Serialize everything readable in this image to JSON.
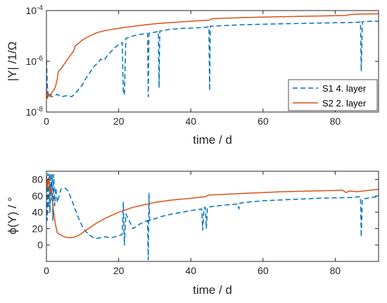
{
  "chart_data": [
    {
      "type": "line",
      "xlabel": "time / d",
      "ylabel": "|Y| /1/Ω",
      "xscale": "linear",
      "yscale": "log",
      "xlim": [
        0,
        92
      ],
      "ylim": [
        1e-08,
        0.0001
      ],
      "xticks": [
        0,
        20,
        40,
        60,
        80
      ],
      "yticks": [
        {
          "value": 1e-08,
          "base": "10",
          "exp": "-8"
        },
        {
          "value": 1e-06,
          "base": "10",
          "exp": "-6"
        },
        {
          "value": 0.0001,
          "base": "10",
          "exp": "-4"
        }
      ],
      "legend": {
        "position": "bottom-right",
        "entries": [
          "S1 4. layer",
          "S2 2. layer"
        ]
      },
      "grid": false,
      "series": [
        {
          "name": "S1 4. layer",
          "color": "#0072BD",
          "dash": "dashed",
          "points": [
            [
              0,
              1.1e-06
            ],
            [
              0.3,
              8e-08
            ],
            [
              0.6,
              4e-08
            ],
            [
              1,
              5e-08
            ],
            [
              1.5,
              4e-08
            ],
            [
              2.5,
              4.5e-08
            ],
            [
              3,
              5e-08
            ],
            [
              4,
              4e-08
            ],
            [
              6,
              4.5e-08
            ],
            [
              7,
              4e-08
            ],
            [
              8,
              5.5e-08
            ],
            [
              9,
              8e-08
            ],
            [
              10,
              1.2e-07
            ],
            [
              11,
              2.2e-07
            ],
            [
              12,
              3.5e-07
            ],
            [
              13,
              6e-07
            ],
            [
              14,
              8e-07
            ],
            [
              15,
              1.2e-06
            ],
            [
              16,
              1.1e-06
            ],
            [
              17,
              1.8e-06
            ],
            [
              18,
              2.5e-06
            ],
            [
              19,
              3.5e-06
            ],
            [
              20,
              4.5e-06
            ],
            [
              21,
              5.5e-06
            ],
            [
              21.3,
              5e-08
            ],
            [
              21.6,
              5e-08
            ],
            [
              22,
              8e-06
            ],
            [
              24,
              1e-05
            ],
            [
              26,
              1.15e-05
            ],
            [
              28,
              1.25e-05
            ],
            [
              28.2,
              4e-08
            ],
            [
              28.4,
              1.3e-05
            ],
            [
              30,
              1.4e-05
            ],
            [
              31,
              1.5e-05
            ],
            [
              31.2,
              9e-08
            ],
            [
              31.4,
              1.55e-05
            ],
            [
              34,
              1.8e-05
            ],
            [
              38,
              2e-05
            ],
            [
              42,
              2.1e-05
            ],
            [
              44,
              2.2e-05
            ],
            [
              45,
              2.3e-05
            ],
            [
              45.2,
              7e-08
            ],
            [
              45.4,
              2.4e-05
            ],
            [
              50,
              2.6e-05
            ],
            [
              55,
              2.8e-05
            ],
            [
              60,
              2.9e-05
            ],
            [
              65,
              3e-05
            ],
            [
              70,
              3.1e-05
            ],
            [
              75,
              3.2e-05
            ],
            [
              80,
              3.3e-05
            ],
            [
              85,
              3.4e-05
            ],
            [
              87,
              3.5e-05
            ],
            [
              87.2,
              4e-07
            ],
            [
              87.5,
              3.6e-05
            ],
            [
              90,
              3.8e-05
            ],
            [
              92,
              3.8e-05
            ]
          ]
        },
        {
          "name": "S2 2. layer",
          "color": "#D95319",
          "dash": "solid",
          "points": [
            [
              0,
              9e-08
            ],
            [
              0.3,
              3.5e-08
            ],
            [
              0.7,
              5e-08
            ],
            [
              1,
              4e-08
            ],
            [
              1.5,
              6e-08
            ],
            [
              2,
              7e-08
            ],
            [
              2.5,
              1e-07
            ],
            [
              3,
              2e-07
            ],
            [
              3.3,
              4e-07
            ],
            [
              4,
              5e-07
            ],
            [
              5,
              8e-07
            ],
            [
              6,
              1.3e-06
            ],
            [
              7,
              2e-06
            ],
            [
              7.5,
              2.5e-06
            ],
            [
              8,
              4e-06
            ],
            [
              10,
              7e-06
            ],
            [
              12,
              1e-05
            ],
            [
              14,
              1.35e-05
            ],
            [
              16,
              1.6e-05
            ],
            [
              18,
              1.8e-05
            ],
            [
              20,
              2e-05
            ],
            [
              22,
              2.2e-05
            ],
            [
              25,
              2.5e-05
            ],
            [
              28,
              2.8e-05
            ],
            [
              31,
              3.1e-05
            ],
            [
              35,
              3.4e-05
            ],
            [
              40,
              3.8e-05
            ],
            [
              44,
              4.1e-05
            ],
            [
              45,
              4.2e-05
            ],
            [
              46,
              4.8e-05
            ],
            [
              50,
              5e-05
            ],
            [
              55,
              5.3e-05
            ],
            [
              60,
              5.5e-05
            ],
            [
              65,
              5.7e-05
            ],
            [
              70,
              5.9e-05
            ],
            [
              75,
              6.1e-05
            ],
            [
              80,
              6.3e-05
            ],
            [
              83,
              6.4e-05
            ],
            [
              84,
              7e-05
            ],
            [
              86,
              7.2e-05
            ],
            [
              88,
              7.3e-05
            ],
            [
              90,
              7.4e-05
            ],
            [
              92,
              7.5e-05
            ]
          ]
        }
      ]
    },
    {
      "type": "line",
      "xlabel": "time / d",
      "ylabel": "ϕ(Y) / °",
      "xscale": "linear",
      "yscale": "linear",
      "xlim": [
        0,
        92
      ],
      "ylim": [
        -20,
        90
      ],
      "xticks": [
        0,
        20,
        40,
        60,
        80
      ],
      "yticks": [
        0,
        20,
        40,
        60,
        80
      ],
      "grid": false,
      "series": [
        {
          "name": "S1 4. layer",
          "color": "#0072BD",
          "dash": "dashed",
          "points": [
            [
              0,
              80
            ],
            [
              0.2,
              30
            ],
            [
              0.4,
              87
            ],
            [
              0.6,
              45
            ],
            [
              0.8,
              86
            ],
            [
              1,
              40
            ],
            [
              1.2,
              87
            ],
            [
              1.4,
              55
            ],
            [
              1.6,
              86
            ],
            [
              1.8,
              30
            ],
            [
              2,
              86
            ],
            [
              2.3,
              48
            ],
            [
              2.6,
              70
            ],
            [
              3,
              52
            ],
            [
              3.5,
              60
            ],
            [
              4,
              68
            ],
            [
              5,
              70
            ],
            [
              6,
              66
            ],
            [
              7,
              55
            ],
            [
              8,
              43
            ],
            [
              9,
              32
            ],
            [
              10,
              22
            ],
            [
              11,
              16
            ],
            [
              12,
              12
            ],
            [
              13,
              9
            ],
            [
              14,
              8
            ],
            [
              16,
              10
            ],
            [
              18,
              9
            ],
            [
              20,
              11
            ],
            [
              21,
              13
            ],
            [
              21.3,
              52
            ],
            [
              21.6,
              0
            ],
            [
              22,
              38
            ],
            [
              24,
              20
            ],
            [
              26,
              26
            ],
            [
              28,
              30
            ],
            [
              28.2,
              -18
            ],
            [
              28.4,
              63
            ],
            [
              28.6,
              30
            ],
            [
              30,
              32
            ],
            [
              32,
              35
            ],
            [
              35,
              38
            ],
            [
              40,
              42
            ],
            [
              43,
              44
            ],
            [
              43.3,
              18
            ],
            [
              43.6,
              45
            ],
            [
              44,
              46
            ],
            [
              44.3,
              20
            ],
            [
              44.6,
              46
            ],
            [
              46,
              47
            ],
            [
              50,
              49
            ],
            [
              53,
              50
            ],
            [
              53.3,
              44
            ],
            [
              53.6,
              51
            ],
            [
              55,
              52
            ],
            [
              60,
              54
            ],
            [
              65,
              55
            ],
            [
              70,
              56
            ],
            [
              75,
              57
            ],
            [
              80,
              57.5
            ],
            [
              85,
              58
            ],
            [
              87,
              59
            ],
            [
              87.2,
              10
            ],
            [
              87.5,
              56
            ],
            [
              90,
              58
            ],
            [
              92,
              59
            ]
          ]
        },
        {
          "name": "S2 2. layer",
          "color": "#D95319",
          "dash": "solid",
          "points": [
            [
              0,
              85
            ],
            [
              0.3,
              70
            ],
            [
              0.6,
              82
            ],
            [
              1,
              65
            ],
            [
              1.3,
              70
            ],
            [
              1.6,
              55
            ],
            [
              2,
              40
            ],
            [
              2.5,
              25
            ],
            [
              3,
              15
            ],
            [
              4,
              12
            ],
            [
              5,
              10
            ],
            [
              6,
              9
            ],
            [
              7,
              9
            ],
            [
              8,
              10
            ],
            [
              9,
              12
            ],
            [
              10,
              15
            ],
            [
              12,
              21
            ],
            [
              14,
              27
            ],
            [
              16,
              32
            ],
            [
              18,
              36
            ],
            [
              20,
              40
            ],
            [
              22,
              43
            ],
            [
              24,
              46
            ],
            [
              26,
              48
            ],
            [
              28,
              50
            ],
            [
              30,
              52
            ],
            [
              35,
              55
            ],
            [
              40,
              57
            ],
            [
              44,
              59
            ],
            [
              45,
              61
            ],
            [
              50,
              62
            ],
            [
              55,
              63
            ],
            [
              60,
              64
            ],
            [
              65,
              65
            ],
            [
              70,
              65.5
            ],
            [
              75,
              66
            ],
            [
              80,
              66.5
            ],
            [
              82,
              67
            ],
            [
              83,
              64
            ],
            [
              84,
              66
            ],
            [
              86,
              65
            ],
            [
              88,
              66
            ],
            [
              90,
              67
            ],
            [
              92,
              68
            ]
          ]
        }
      ]
    }
  ]
}
